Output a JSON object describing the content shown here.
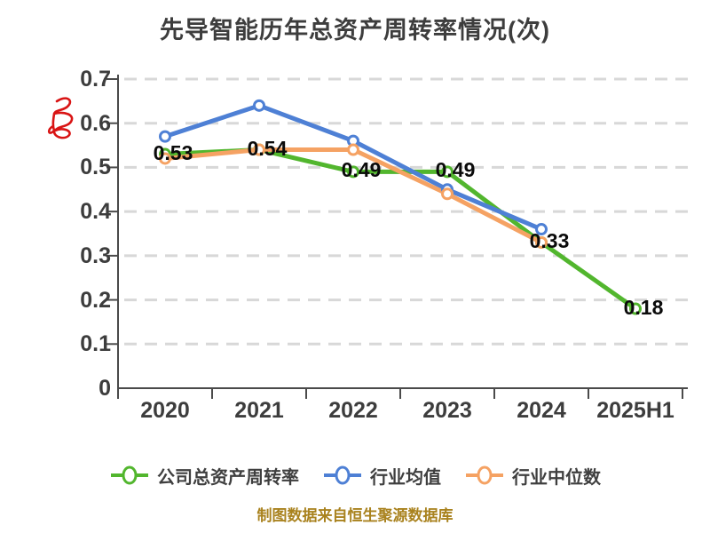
{
  "page": {
    "background": "#ffffff"
  },
  "chart_data": {
    "type": "line",
    "title": "先导智能历年总资产周转率情况(次)",
    "categories": [
      "2020",
      "2021",
      "2022",
      "2023",
      "2024",
      "2025H1"
    ],
    "series": [
      {
        "name": "公司总资产周转率",
        "color": "#52b62e",
        "values": [
          0.53,
          0.54,
          0.49,
          0.49,
          0.33,
          0.18
        ],
        "marker": "circle-white-fill"
      },
      {
        "name": "行业均值",
        "color": "#4e80d5",
        "values": [
          0.57,
          0.64,
          0.56,
          0.45,
          0.36,
          null
        ],
        "marker": "circle-white-fill"
      },
      {
        "name": "行业中位数",
        "color": "#f5a263",
        "values": [
          0.52,
          0.54,
          0.54,
          0.44,
          0.33,
          null
        ],
        "marker": "circle-white-fill"
      }
    ],
    "data_labels": {
      "series": "公司总资产周转率",
      "values": [
        "0.53",
        "0.54",
        "0.49",
        "0.49",
        "0.33",
        "0.18"
      ]
    },
    "ylim": [
      0,
      0.7
    ],
    "ytick_labels": [
      "0.7",
      "0.6",
      "0.5",
      "0.4",
      "0.3",
      "0.2",
      "0.1",
      "0"
    ],
    "grid": "horizontal-dashed",
    "grid_color": "#d8d8d8",
    "axis_color": "#4a4a4a",
    "legend_position": "bottom"
  },
  "annotation": {
    "red_scribble": "handwritten red ink mark near upper y-axis",
    "color": "#d91414"
  },
  "footer": {
    "text": "制图数据来自恒生聚源数据库",
    "color": "#a9821e"
  }
}
